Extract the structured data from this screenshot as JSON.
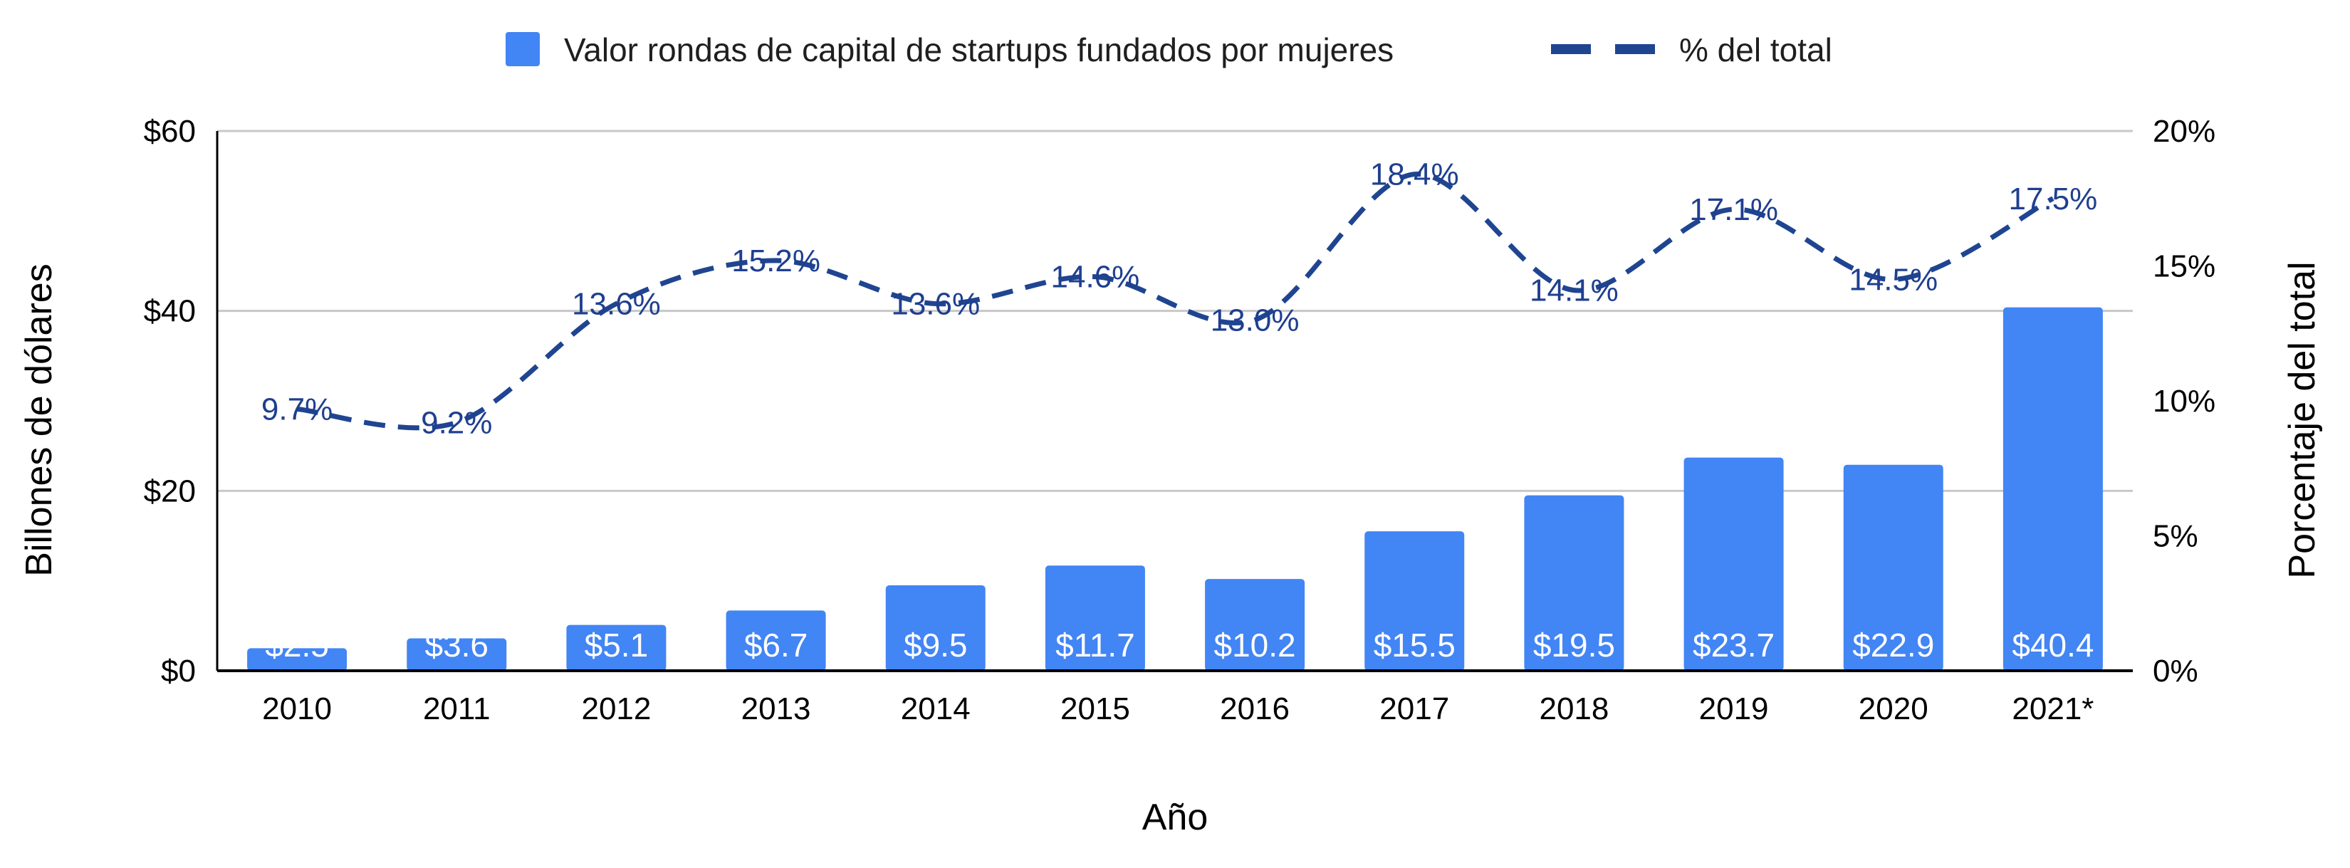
{
  "colors": {
    "bar": "#4285f4",
    "line": "#1f4591",
    "grid": "#c8c8c8",
    "axis": "#000000",
    "bar_label": "#ffffff"
  },
  "legend": {
    "bars_label": "Valor rondas de capital de startups fundados por mujeres",
    "line_label": "% del total"
  },
  "chart_data": {
    "type": "bar",
    "categories": [
      "2010",
      "2011",
      "2012",
      "2013",
      "2014",
      "2015",
      "2016",
      "2017",
      "2018",
      "2019",
      "2020",
      "2021*"
    ],
    "series": [
      {
        "name": "Valor rondas de capital de startups fundados por mujeres",
        "type": "bar",
        "axis": "left",
        "values": [
          2.5,
          3.6,
          5.1,
          6.7,
          9.5,
          11.7,
          10.2,
          15.5,
          19.5,
          23.7,
          22.9,
          40.4
        ],
        "labels": [
          "$2.5",
          "$3.6",
          "$5.1",
          "$6.7",
          "$9.5",
          "$11.7",
          "$10.2",
          "$15.5",
          "$19.5",
          "$23.7",
          "$22.9",
          "$40.4"
        ]
      },
      {
        "name": "% del total",
        "type": "line",
        "style": "dashed",
        "axis": "right",
        "values": [
          9.7,
          9.2,
          13.6,
          15.2,
          13.6,
          14.6,
          13.0,
          18.4,
          14.1,
          17.1,
          14.5,
          17.5
        ],
        "labels": [
          "9.7%",
          "9.2%",
          "13.6%",
          "15.2%",
          "13.6%",
          "14.6%",
          "13.0%",
          "18.4%",
          "14.1%",
          "17.1%",
          "14.5%",
          "17.5%"
        ]
      }
    ],
    "xlabel": "Año",
    "ylabel": "Billones de dólares",
    "y2label": "Porcentaje del total",
    "ylim": [
      0,
      60
    ],
    "y2lim": [
      0,
      20
    ],
    "yticks": [
      "$0",
      "$20",
      "$40",
      "$60"
    ],
    "y2ticks": [
      "0%",
      "5%",
      "10%",
      "15%",
      "20%"
    ],
    "grid": true,
    "legend_position": "top-center"
  }
}
